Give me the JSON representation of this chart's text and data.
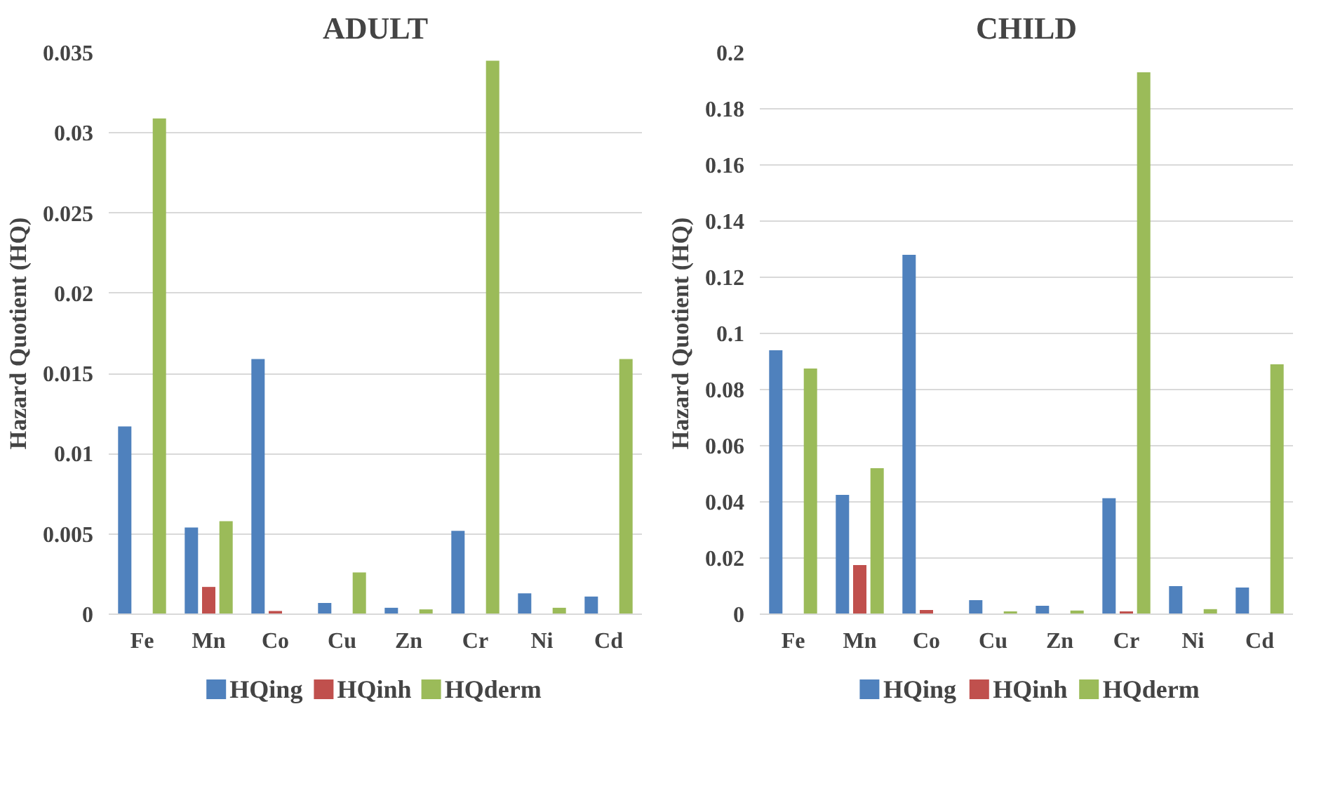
{
  "chart_data": [
    {
      "type": "bar",
      "title": "ADULT",
      "ylabel": "Hazard Quotient (HQ)",
      "categories": [
        "Fe",
        "Mn",
        "Co",
        "Cu",
        "Zn",
        "Cr",
        "Ni",
        "Cd"
      ],
      "series": [
        {
          "name": "HQing",
          "color": "#4f81bd",
          "values": [
            0.0117,
            0.0054,
            0.0159,
            0.0007,
            0.0004,
            0.0052,
            0.0013,
            0.0011
          ]
        },
        {
          "name": "HQinh",
          "color": "#c0504d",
          "values": [
            0,
            0.0017,
            0.0002,
            0,
            0,
            null,
            0,
            0
          ]
        },
        {
          "name": "HQderm",
          "color": "#9bbb59",
          "values": [
            0.0309,
            0.0058,
            null,
            0.0026,
            0.0003,
            0.0345,
            0.0004,
            0.0159
          ]
        }
      ],
      "ylim": [
        0,
        0.035
      ],
      "yticks": [
        0,
        0.005,
        0.01,
        0.015,
        0.02,
        0.025,
        0.03,
        0.035
      ],
      "grid": "y",
      "legend": "bottom"
    },
    {
      "type": "bar",
      "title": "CHILD",
      "ylabel": "Hazard Quotient (HQ)",
      "categories": [
        "Fe",
        "Mn",
        "Co",
        "Cu",
        "Zn",
        "Cr",
        "Ni",
        "Cd"
      ],
      "series": [
        {
          "name": "HQing",
          "color": "#4f81bd",
          "values": [
            0.094,
            0.0425,
            0.128,
            0.005,
            0.003,
            0.0413,
            0.01,
            0.0095
          ]
        },
        {
          "name": "HQinh",
          "color": "#c0504d",
          "values": [
            0,
            0.0175,
            0.0015,
            0,
            0,
            0.001,
            0,
            0
          ]
        },
        {
          "name": "HQderm",
          "color": "#9bbb59",
          "values": [
            0.0875,
            0.052,
            0,
            0.001,
            0.0013,
            0.193,
            0.0018,
            0.089
          ]
        }
      ],
      "ylim": [
        0,
        0.2
      ],
      "yticks": [
        0,
        0.02,
        0.04,
        0.06,
        0.08,
        0.1,
        0.12,
        0.14,
        0.16,
        0.18,
        0.2
      ],
      "grid": "y",
      "legend": "bottom"
    }
  ]
}
